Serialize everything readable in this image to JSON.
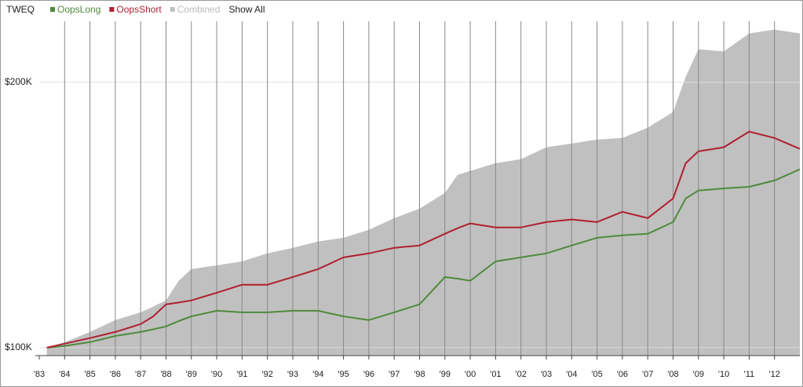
{
  "chart_data": {
    "type": "line",
    "title": "TWEQ",
    "show_all_label": "Show All",
    "grid": true,
    "xlim": [
      1983,
      2013
    ],
    "ylim": [
      97000,
      223000
    ],
    "xticks": [
      {
        "value": 1983,
        "label": "'83"
      },
      {
        "value": 1984,
        "label": "'84"
      },
      {
        "value": 1985,
        "label": "'85"
      },
      {
        "value": 1986,
        "label": "'86"
      },
      {
        "value": 1987,
        "label": "'87"
      },
      {
        "value": 1988,
        "label": "'88"
      },
      {
        "value": 1989,
        "label": "'89"
      },
      {
        "value": 1990,
        "label": "'90"
      },
      {
        "value": 1991,
        "label": "'91"
      },
      {
        "value": 1992,
        "label": "'92"
      },
      {
        "value": 1993,
        "label": "'93"
      },
      {
        "value": 1994,
        "label": "'94"
      },
      {
        "value": 1995,
        "label": "'95"
      },
      {
        "value": 1996,
        "label": "'96"
      },
      {
        "value": 1997,
        "label": "'97"
      },
      {
        "value": 1998,
        "label": "'98"
      },
      {
        "value": 1999,
        "label": "'99"
      },
      {
        "value": 2000,
        "label": "'00"
      },
      {
        "value": 2001,
        "label": "'01"
      },
      {
        "value": 2002,
        "label": "'02"
      },
      {
        "value": 2003,
        "label": "'03"
      },
      {
        "value": 2004,
        "label": "'04"
      },
      {
        "value": 2005,
        "label": "'05"
      },
      {
        "value": 2006,
        "label": "'06"
      },
      {
        "value": 2007,
        "label": "'07"
      },
      {
        "value": 2008,
        "label": "'08"
      },
      {
        "value": 2009,
        "label": "'09"
      },
      {
        "value": 2010,
        "label": "'10"
      },
      {
        "value": 2011,
        "label": "'11"
      },
      {
        "value": 2012,
        "label": "'12"
      }
    ],
    "yticks": [
      {
        "value": 100000,
        "label": "$100K"
      },
      {
        "value": 200000,
        "label": "$200K"
      }
    ],
    "x": [
      1983.3,
      1984,
      1985,
      1986,
      1987,
      1987.5,
      1988,
      1988.5,
      1989,
      1990,
      1991,
      1992,
      1993,
      1994,
      1995,
      1996,
      1997,
      1998,
      1999,
      1999.5,
      2000,
      2001,
      2002,
      2003,
      2004,
      2005,
      2006,
      2007,
      2008,
      2008.5,
      2009,
      2010,
      2011,
      2012,
      2013
    ],
    "series": [
      {
        "name": "Combined",
        "color": "#c0c0c0",
        "kind": "area",
        "values": [
          100000,
          102000,
          105900,
          110400,
          113300,
          115500,
          117800,
          125200,
          129600,
          131000,
          132500,
          135500,
          137600,
          140000,
          141400,
          144400,
          148800,
          152400,
          158300,
          165100,
          166600,
          169500,
          171000,
          175500,
          176900,
          178400,
          179000,
          182900,
          188800,
          202100,
          212400,
          211600,
          218400,
          219800,
          218400
        ]
      },
      {
        "name": "OopsLong",
        "color": "#4f8a3c",
        "kind": "line",
        "values": [
          100000,
          100600,
          102100,
          104400,
          105900,
          106900,
          108000,
          110000,
          111800,
          113900,
          113300,
          113300,
          113900,
          113900,
          111800,
          110400,
          113300,
          116300,
          126600,
          126000,
          125200,
          132500,
          134000,
          135500,
          138500,
          141400,
          142300,
          142900,
          147300,
          156200,
          159200,
          160000,
          160600,
          163000,
          167200
        ]
      },
      {
        "name": "OopsShort",
        "color": "#b02030",
        "kind": "line",
        "values": [
          100000,
          101500,
          103600,
          105900,
          108900,
          111800,
          116300,
          117000,
          117800,
          120700,
          123700,
          123700,
          126600,
          129600,
          134000,
          135500,
          137600,
          138500,
          142900,
          145000,
          146800,
          145300,
          145300,
          147300,
          148300,
          147300,
          151200,
          148800,
          156200,
          169500,
          174000,
          175500,
          181400,
          179000,
          174900
        ]
      }
    ]
  }
}
